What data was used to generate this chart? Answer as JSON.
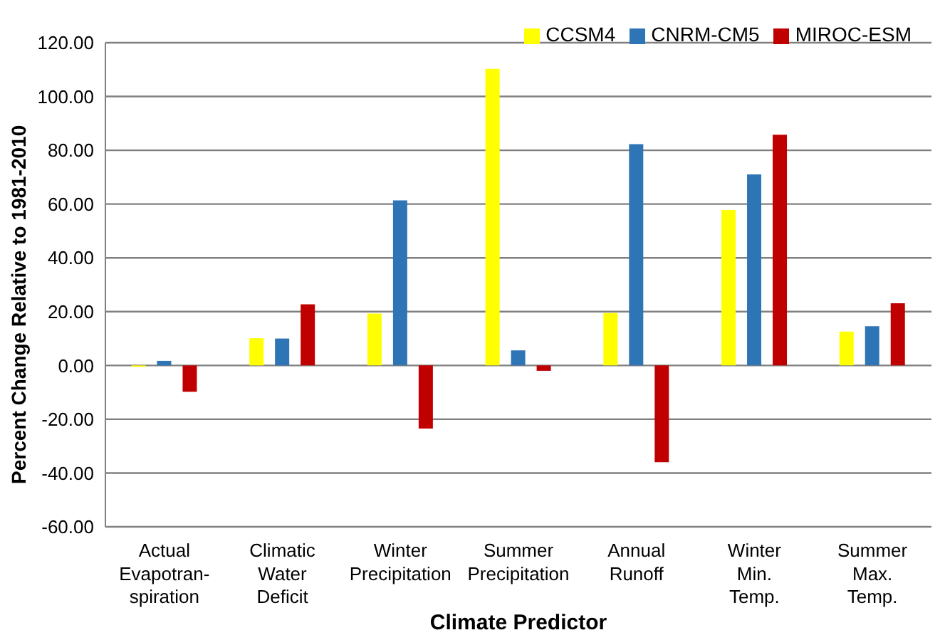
{
  "chart_data": {
    "type": "bar",
    "xlabel": "Climate Predictor",
    "ylabel": "Percent Change Relative to 1981-2010",
    "categories": [
      "Actual\nEvapotran-\nspiration",
      "Climatic\nWater\nDeficit",
      "Winter\nPrecipitation",
      "Summer\nPrecipitation",
      "Annual\nRunoff",
      "Winter\nMin.\nTemp.",
      "Summer\nMax.\nTemp."
    ],
    "series": [
      {
        "name": "CCSM4",
        "color": "#ffff00",
        "values": [
          -0.5,
          10.1,
          19.3,
          110.3,
          19.5,
          57.8,
          12.6
        ]
      },
      {
        "name": "CNRM-CM5",
        "color": "#2e75b6",
        "values": [
          1.7,
          10,
          61.4,
          5.6,
          82.3,
          71,
          14.6
        ]
      },
      {
        "name": "MIROC-ESM",
        "color": "#c00000",
        "values": [
          -9.8,
          22.7,
          -23.5,
          -2,
          -36,
          85.8,
          23.1
        ]
      }
    ],
    "ylim": [
      -60,
      120
    ],
    "yticks": [
      {
        "value": -60,
        "label": "-60.00"
      },
      {
        "value": -40,
        "label": "-40.00"
      },
      {
        "value": -20,
        "label": "-20.00"
      },
      {
        "value": 0,
        "label": "0.00"
      },
      {
        "value": 20,
        "label": "20.00"
      },
      {
        "value": 40,
        "label": "40.00"
      },
      {
        "value": 60,
        "label": "60.00"
      },
      {
        "value": 80,
        "label": "80.00"
      },
      {
        "value": 100,
        "label": "100.00"
      },
      {
        "value": 120,
        "label": "120.00"
      }
    ],
    "grid": "y",
    "legend": "top right"
  }
}
